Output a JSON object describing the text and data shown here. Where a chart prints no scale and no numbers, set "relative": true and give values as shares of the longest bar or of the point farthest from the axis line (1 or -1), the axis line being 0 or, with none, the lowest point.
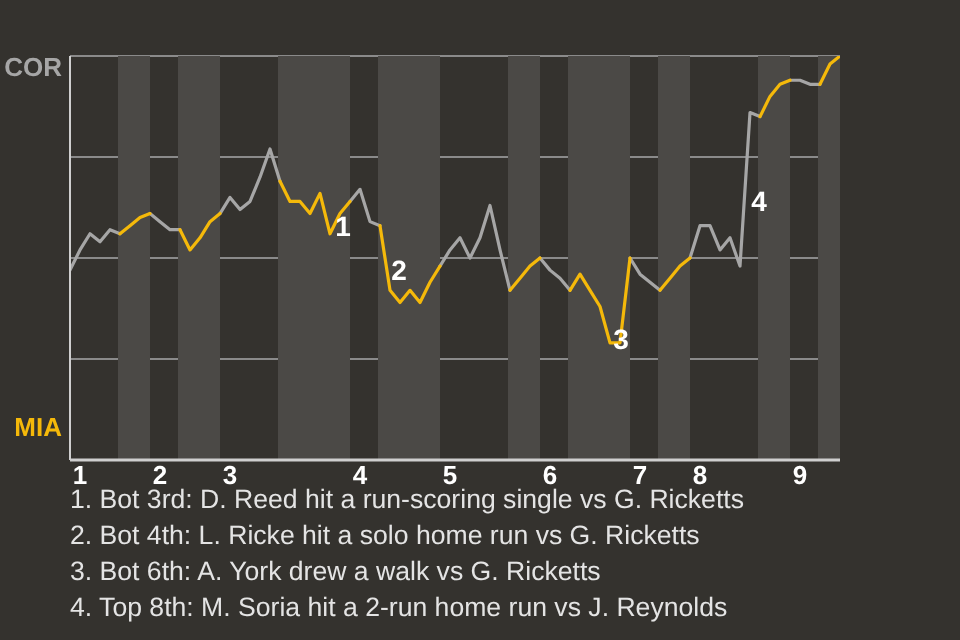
{
  "chart_data": {
    "type": "line",
    "relative": true,
    "categories": [
      null,
      "1",
      null,
      null,
      null,
      null,
      null,
      null,
      null,
      "2",
      null,
      null,
      null,
      null,
      null,
      null,
      "3",
      null,
      null,
      null,
      null,
      null,
      null,
      null,
      null,
      null,
      null,
      null,
      null,
      "4",
      null,
      null,
      null,
      null,
      null,
      null,
      null,
      null,
      "5",
      null,
      null,
      null,
      null,
      null,
      null,
      null,
      null,
      null,
      "6",
      null,
      null,
      null,
      null,
      null,
      null,
      null,
      null,
      "7",
      null,
      null,
      null,
      null,
      null,
      "8",
      null,
      null,
      null,
      null,
      null,
      null,
      null,
      null,
      null,
      "9",
      null,
      null,
      null,
      null
    ],
    "series": [
      {
        "name": "COR",
        "color": "#a6a6a6",
        "values": [
          0.47,
          0.52,
          0.56,
          0.54,
          0.57,
          0.56,
          null,
          null,
          0.61,
          0.59,
          0.57,
          0.57,
          null,
          null,
          null,
          0.61,
          0.65,
          0.62,
          0.64,
          0.7,
          0.77,
          0.69,
          null,
          null,
          null,
          null,
          null,
          null,
          0.64,
          0.67,
          0.59,
          0.58,
          null,
          null,
          null,
          null,
          null,
          0.48,
          0.52,
          0.55,
          0.5,
          0.55,
          0.63,
          0.52,
          0.42,
          null,
          null,
          0.5,
          0.47,
          0.45,
          0.42,
          null,
          null,
          null,
          null,
          null,
          0.5,
          0.46,
          0.44,
          0.42,
          null,
          null,
          0.5,
          0.58,
          0.58,
          0.52,
          0.55,
          0.48,
          0.86,
          0.85,
          null,
          null,
          0.94,
          0.94,
          0.93,
          0.93,
          null,
          null
        ]
      },
      {
        "name": "MIA",
        "color": "#f5b90a",
        "values": [
          null,
          null,
          null,
          null,
          null,
          0.56,
          0.58,
          0.6,
          0.61,
          null,
          null,
          0.57,
          0.52,
          0.55,
          0.59,
          0.61,
          null,
          null,
          null,
          null,
          null,
          0.69,
          0.64,
          0.64,
          0.61,
          0.66,
          0.56,
          0.61,
          0.64,
          null,
          null,
          0.58,
          0.42,
          0.39,
          0.42,
          0.39,
          0.44,
          0.48,
          null,
          null,
          null,
          null,
          null,
          null,
          0.42,
          0.45,
          0.48,
          0.5,
          null,
          null,
          0.42,
          0.46,
          0.42,
          0.38,
          0.29,
          0.29,
          0.5,
          null,
          null,
          0.42,
          0.45,
          0.48,
          0.5,
          null,
          null,
          null,
          null,
          null,
          null,
          0.85,
          0.9,
          0.93,
          0.94,
          null,
          null,
          0.93,
          0.98,
          1
        ]
      }
    ],
    "grid": "y",
    "annotations": [
      "1",
      "2",
      "3",
      "4",
      "1. Bot 3rd: D. Reed hit a run-scoring single vs G. Ricketts",
      "2. Bot 4th: L. Ricke hit a solo home run vs G. Ricketts",
      "3. Bot 6th: A. York drew a walk vs G. Ricketts",
      "4. Top 8th: M. Soria hit a 2-run home run vs J. Reynolds"
    ]
  }
}
